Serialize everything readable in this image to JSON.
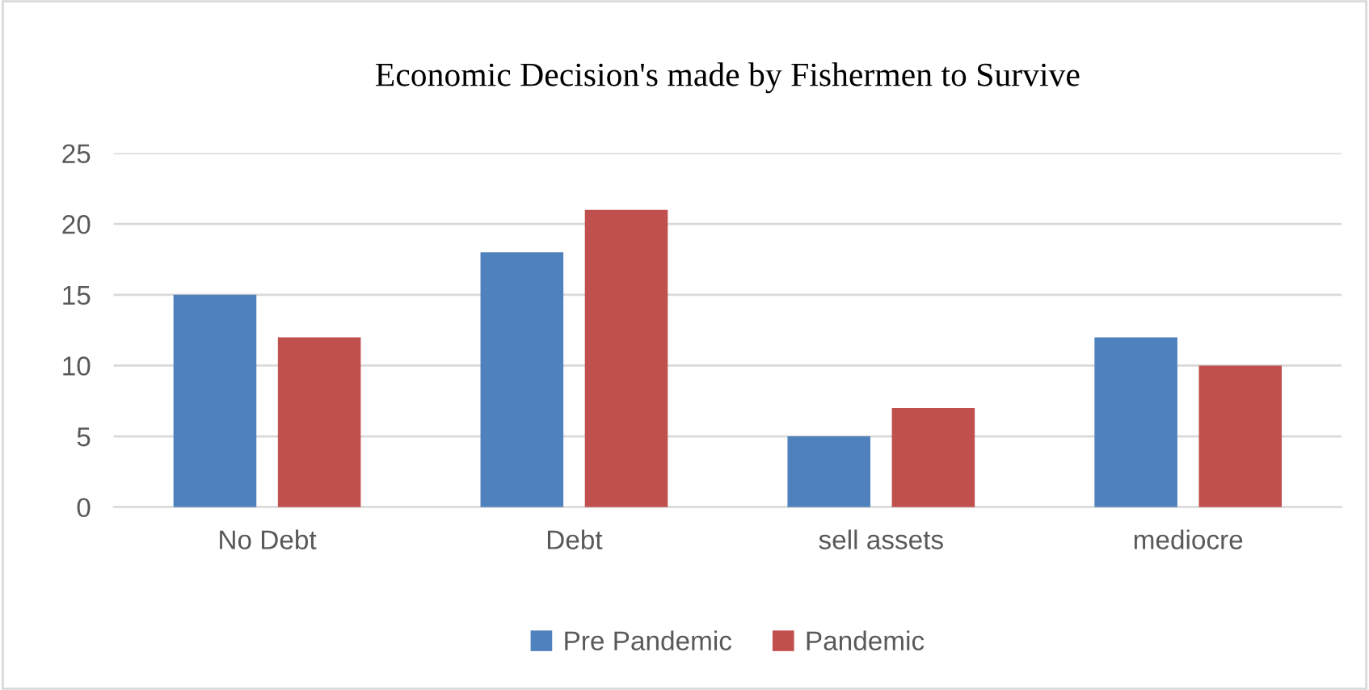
{
  "chart_data": {
    "type": "bar",
    "title": "Economic Decision's made by Fishermen to Survive",
    "categories": [
      "No Debt",
      "Debt",
      "sell assets",
      "mediocre"
    ],
    "series": [
      {
        "name": "Pre Pandemic",
        "color": "#4f81bd",
        "values": [
          15,
          18,
          5,
          12
        ]
      },
      {
        "name": "Pandemic",
        "color": "#c0504d",
        "values": [
          12,
          21,
          7,
          10
        ]
      }
    ],
    "ylim": [
      0,
      25
    ],
    "yticks": [
      0,
      5,
      10,
      15,
      20,
      25
    ],
    "grid": "y",
    "legend": "bottom"
  }
}
